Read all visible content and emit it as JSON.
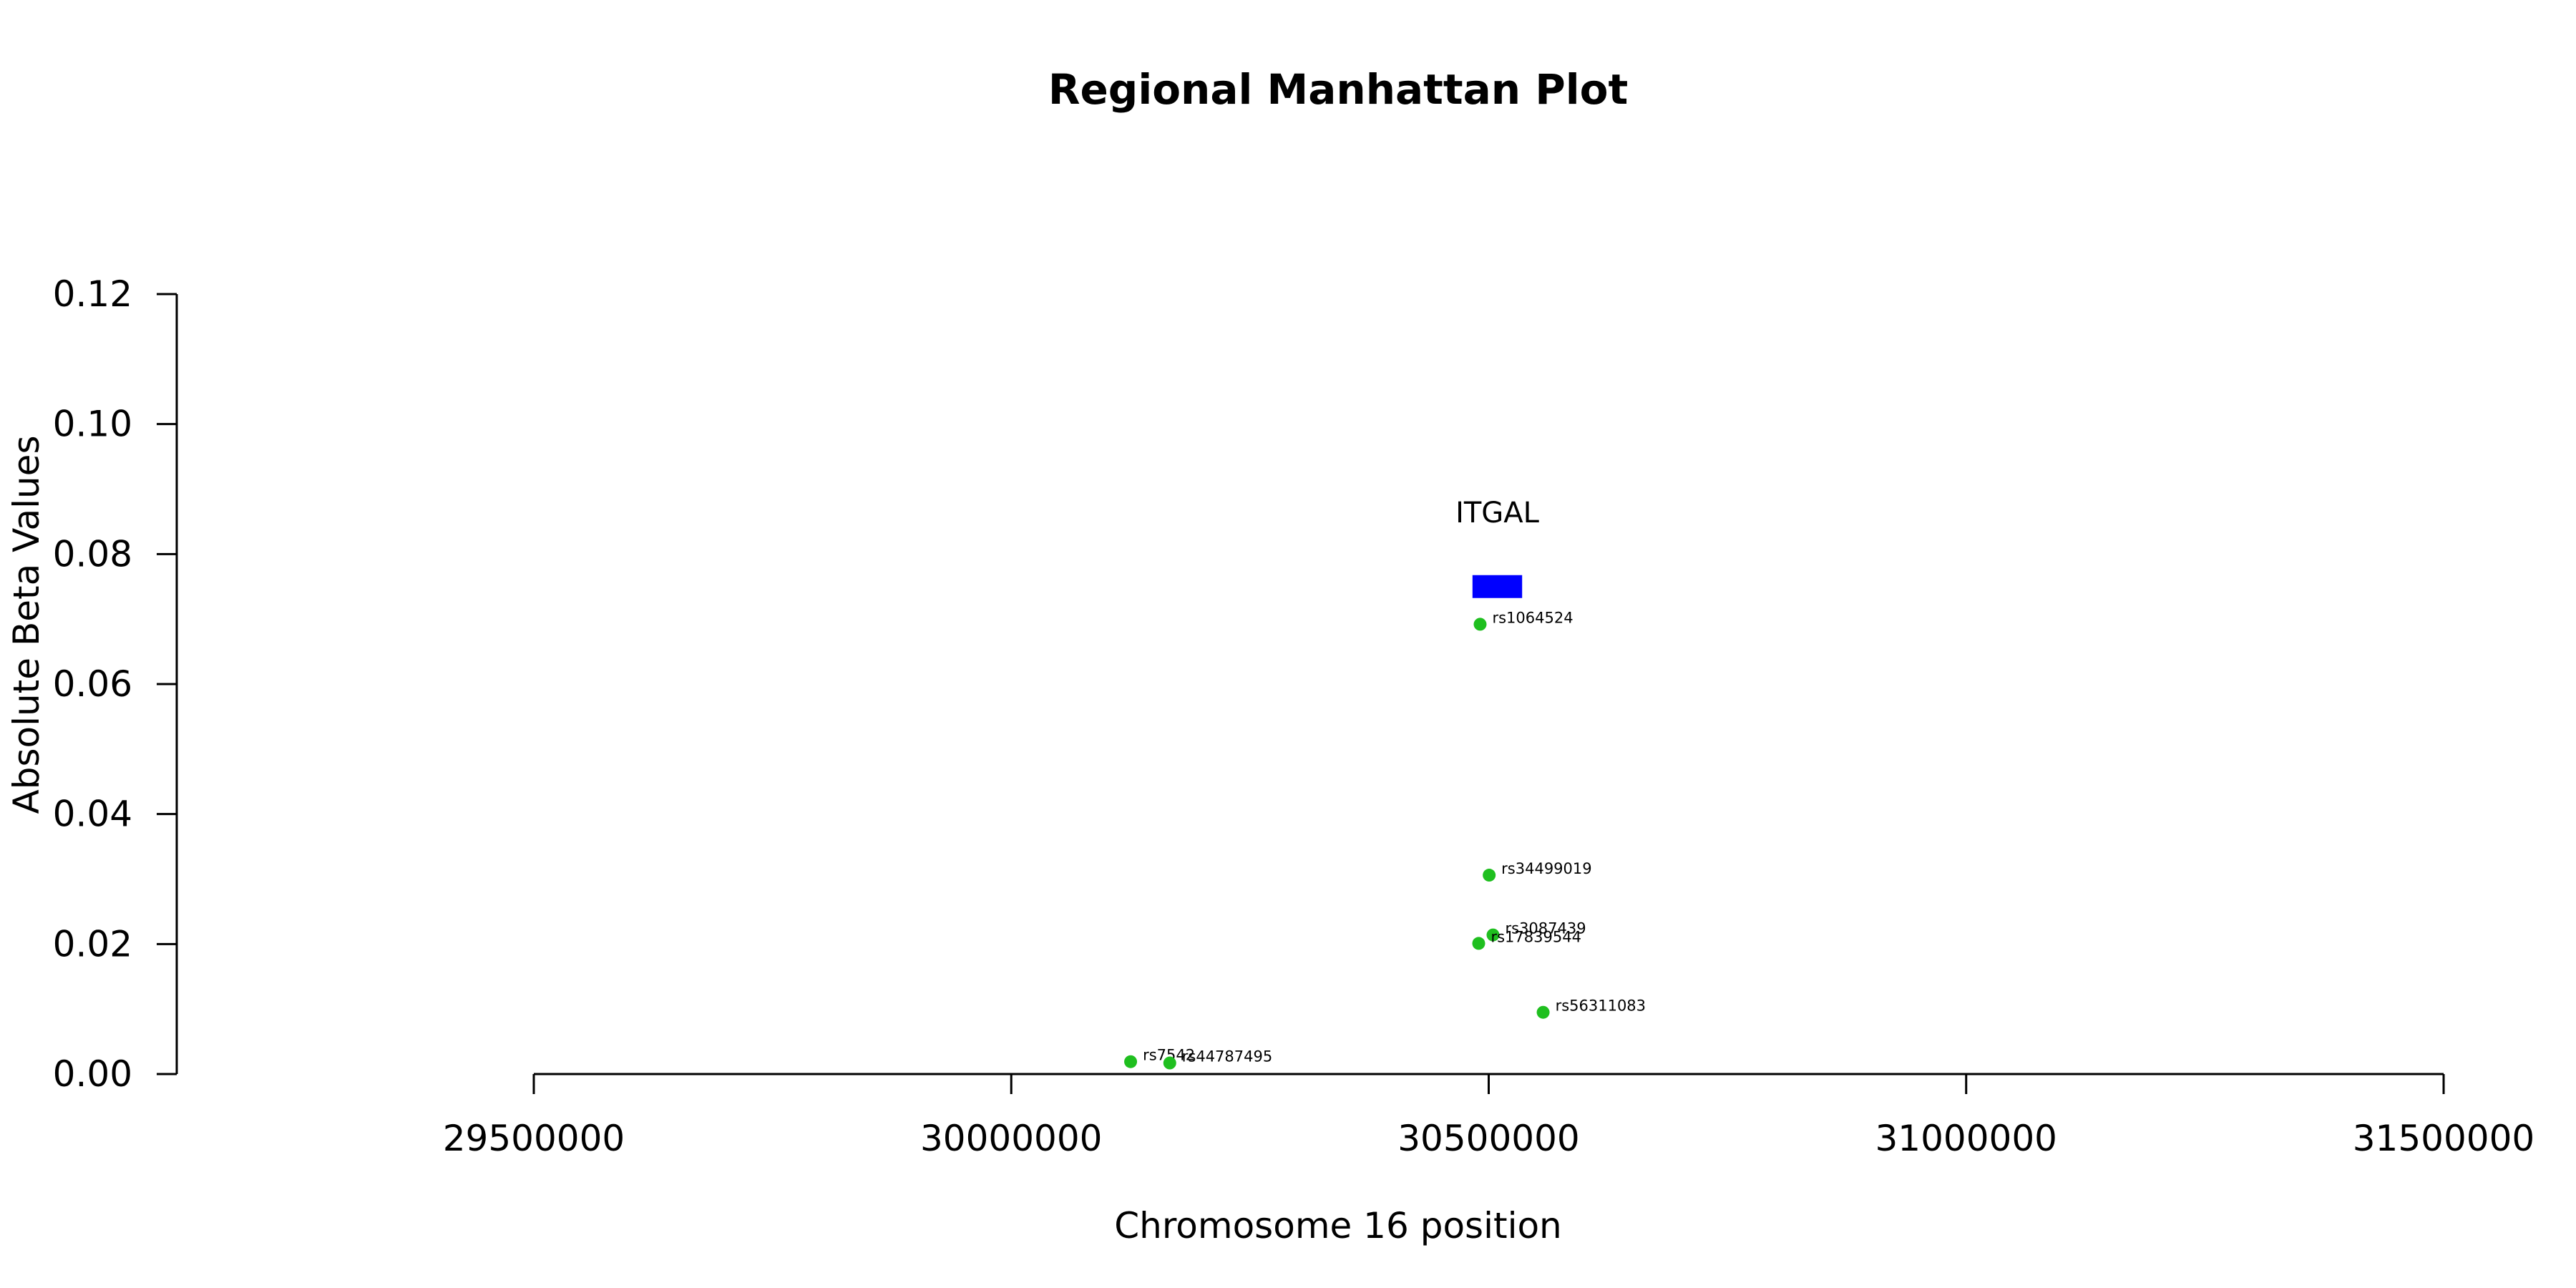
{
  "chart_data": {
    "type": "scatter",
    "title": "Regional Manhattan Plot",
    "xlabel": "Chromosome 16 position",
    "ylabel": "Absolute Beta Values",
    "xlim": [
      29500000,
      31500000
    ],
    "ylim": [
      0,
      0.12
    ],
    "x_ticks": [
      "29500000",
      "30000000",
      "30500000",
      "31000000",
      "31500000"
    ],
    "y_ticks": [
      "0.00",
      "0.02",
      "0.04",
      "0.06",
      "0.08",
      "0.10",
      "0.12"
    ],
    "point_color": "#1fbf1f",
    "points": [
      {
        "x": 30491000,
        "y": 0.0692,
        "label": "rs1064524"
      },
      {
        "x": 30500500,
        "y": 0.0306,
        "label": "rs34499019"
      },
      {
        "x": 30504500,
        "y": 0.0214,
        "label": "rs3087439"
      },
      {
        "x": 30489500,
        "y": 0.0201,
        "label": "rs17839544"
      },
      {
        "x": 30557000,
        "y": 0.0095,
        "label": "rs56311083"
      },
      {
        "x": 30125000,
        "y": 0.0019,
        "label": "rs7542"
      },
      {
        "x": 30166000,
        "y": 0.0017,
        "label": "rs44787495"
      }
    ],
    "genes": [
      {
        "name": "ITGAL",
        "start": 30483000,
        "end": 30535000,
        "y": 0.075,
        "color": "#0000ff"
      }
    ]
  }
}
